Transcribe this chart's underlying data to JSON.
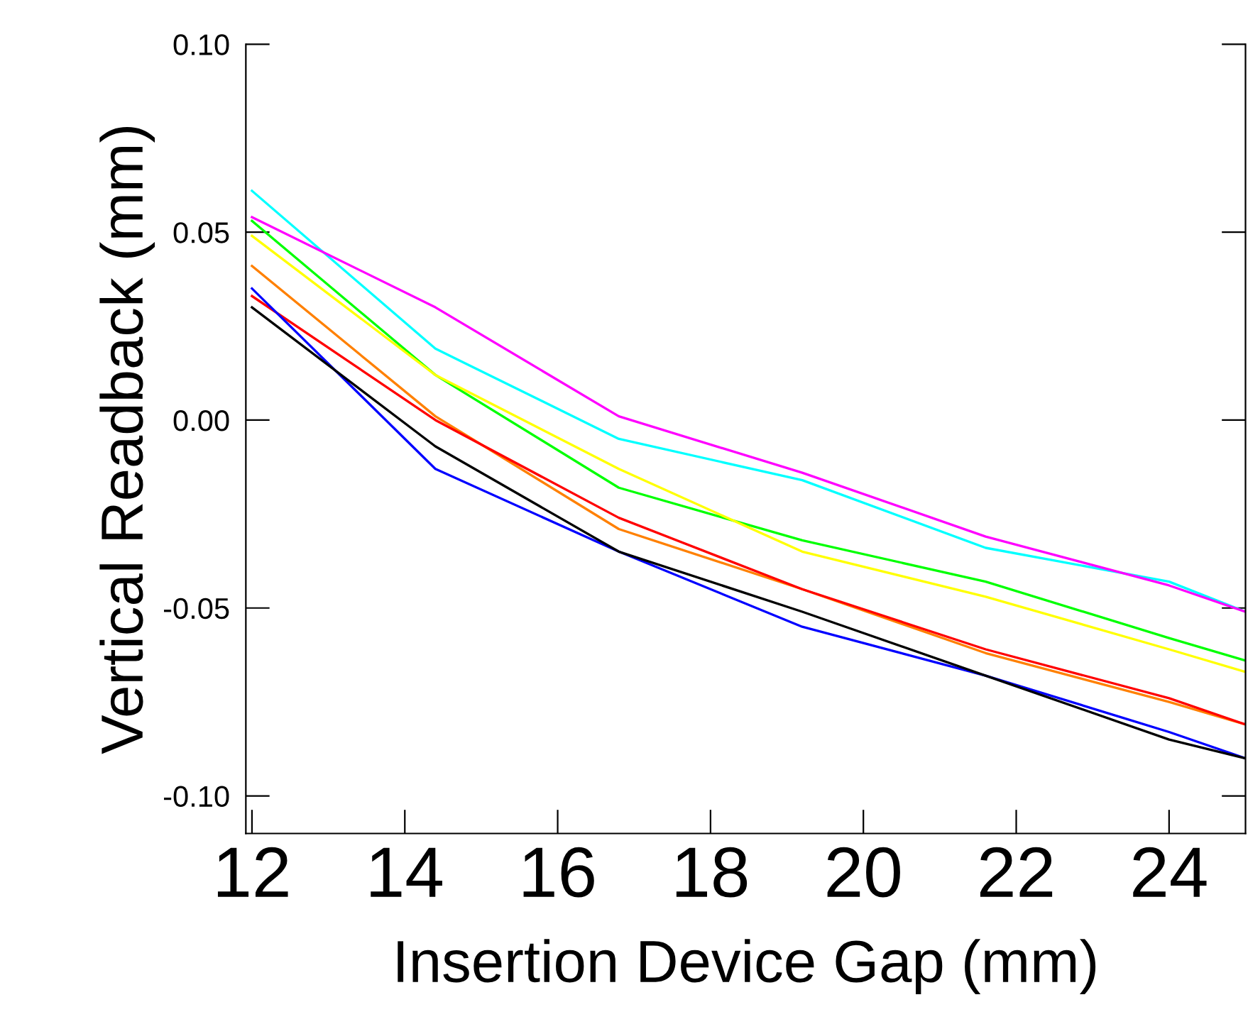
{
  "chart_data": {
    "type": "line",
    "xlabel": "Insertion Device Gap (mm)",
    "ylabel": "Vertical Readback (mm)",
    "x": [
      12,
      14.4,
      16.8,
      19.2,
      21.6,
      24,
      25
    ],
    "xlim": [
      11.92,
      25
    ],
    "xticks": [
      12,
      14,
      16,
      18,
      20,
      22,
      24
    ],
    "ylim": [
      -0.11,
      0.1
    ],
    "yticks": [
      {
        "value": -0.1,
        "label": "-0.10"
      },
      {
        "value": -0.05,
        "label": "-0.05"
      },
      {
        "value": 0,
        "label": "0.00"
      },
      {
        "value": 0.05,
        "label": "0.05"
      },
      {
        "value": 0.1,
        "label": "0.10"
      }
    ],
    "grid": false,
    "legend": false,
    "series": [
      {
        "color": "#00ffff",
        "values": [
          0.061,
          0.019,
          -0.005,
          -0.016,
          -0.034,
          -0.043,
          -0.051
        ]
      },
      {
        "color": "#ff00ff",
        "values": [
          0.054,
          0.03,
          0.001,
          -0.014,
          -0.031,
          -0.044,
          -0.051
        ]
      },
      {
        "color": "#00ff00",
        "values": [
          0.053,
          0.012,
          -0.018,
          -0.032,
          -0.043,
          -0.058,
          -0.064
        ]
      },
      {
        "color": "#ffff00",
        "values": [
          0.049,
          0.012,
          -0.013,
          -0.035,
          -0.047,
          -0.061,
          -0.067
        ]
      },
      {
        "color": "#ff8000",
        "values": [
          0.041,
          0.001,
          -0.029,
          -0.045,
          -0.062,
          -0.075,
          -0.081
        ]
      },
      {
        "color": "#ff0000",
        "values": [
          0.033,
          0.0,
          -0.026,
          -0.045,
          -0.061,
          -0.074,
          -0.081
        ]
      },
      {
        "color": "#0000ff",
        "values": [
          0.035,
          -0.013,
          -0.035,
          -0.055,
          -0.068,
          -0.083,
          -0.09
        ]
      },
      {
        "color": "#000000",
        "values": [
          0.03,
          -0.007,
          -0.035,
          -0.051,
          -0.068,
          -0.085,
          -0.09
        ]
      }
    ]
  }
}
